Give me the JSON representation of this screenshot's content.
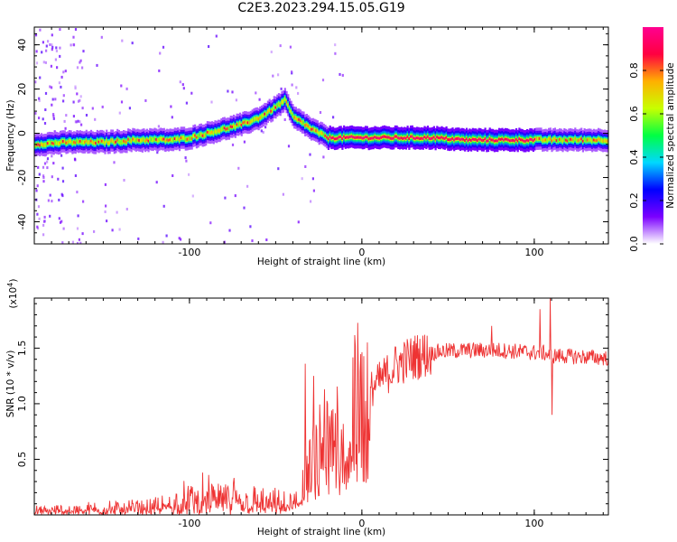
{
  "title": "C2E3.2023.294.15.05.G19",
  "chart_data": [
    {
      "type": "heatmap",
      "xlabel": "Height of straight line (km)",
      "ylabel": "Frequency (Hz)",
      "xlim": [
        -190,
        143
      ],
      "ylim": [
        -50,
        48
      ],
      "xticks": [
        -100,
        0,
        100
      ],
      "yticks": [
        40,
        20,
        0,
        -20,
        -40
      ],
      "colorbar": {
        "label": "Normalized spectral amplitude",
        "range": [
          0,
          1
        ],
        "ticks": [
          "0.0",
          "0.2",
          "0.4",
          "0.6",
          "0.8"
        ],
        "tick_values": [
          0,
          0.2,
          0.4,
          0.6,
          0.8
        ],
        "colors": [
          "#ffffff",
          "#7b00ff",
          "#0000ff",
          "#00d8ff",
          "#00ff44",
          "#c8ff00",
          "#ffb000",
          "#ff0040",
          "#ff0090"
        ]
      },
      "ridge": {
        "x": [
          -190,
          -170,
          -150,
          -130,
          -110,
          -100,
          -90,
          -80,
          -70,
          -60,
          -50,
          -45,
          -40,
          -35,
          -30,
          -25,
          -20,
          -10,
          0,
          20,
          40,
          60,
          80,
          100,
          110,
          143
        ],
        "y": [
          -5,
          -4,
          -4,
          -3,
          -3,
          -2,
          0,
          2,
          4,
          7,
          12,
          15,
          7,
          5,
          2,
          0,
          -2,
          -2,
          -2,
          -2,
          -2,
          -3,
          -3,
          -3,
          -3,
          -3
        ]
      }
    },
    {
      "type": "line",
      "xlabel": "Height of straight line (km)",
      "ylabel": "SNR (10 * v/v)",
      "y_multiplier": "(x10",
      "y_multiplier_exp": "4",
      "xlim": [
        -190,
        143
      ],
      "ylim": [
        0,
        19500
      ],
      "xticks": [
        -100,
        0,
        100
      ],
      "yticks": [
        5000,
        10000,
        15000
      ],
      "ytick_labels": [
        "0.5",
        "1.0",
        "1.5"
      ],
      "color": "#ee3333",
      "envelope": {
        "x": [
          -190,
          -150,
          -120,
          -100,
          -80,
          -60,
          -45,
          -38,
          -33,
          -28,
          -22,
          -15,
          -8,
          0,
          10,
          20,
          30,
          45,
          60,
          80,
          100,
          105,
          110,
          115,
          130,
          143
        ],
        "y": [
          300,
          500,
          600,
          1200,
          1500,
          1000,
          800,
          1500,
          3000,
          5000,
          6500,
          8000,
          9500,
          10500,
          12000,
          13500,
          14200,
          14700,
          14800,
          14800,
          14600,
          14600,
          14300,
          14300,
          14200,
          14100
        ]
      },
      "spikes": [
        {
          "x": -33,
          "y": 13600
        },
        {
          "x": -28,
          "y": 12500
        },
        {
          "x": -22,
          "y": 11300
        },
        {
          "x": 75,
          "y": 17000
        },
        {
          "x": 103,
          "y": 18500
        },
        {
          "x": 109,
          "y": 19500
        },
        {
          "x": 110,
          "y": 9000
        }
      ]
    }
  ]
}
